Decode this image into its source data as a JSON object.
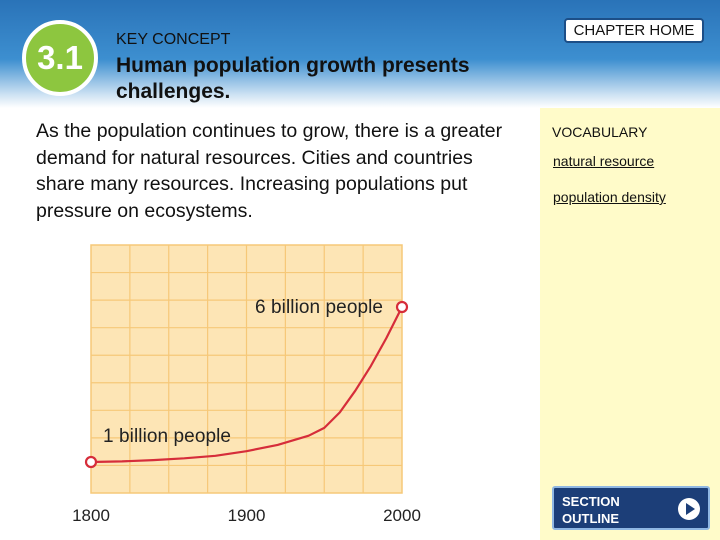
{
  "header": {
    "section_number": "3.1",
    "key_concept_label": "KEY CONCEPT",
    "headline": "Human population growth presents challenges.",
    "chapter_home_label": "CHAPTER HOME"
  },
  "main": {
    "body_text": "As the population continues to grow, there is a greater demand for natural resources. Cities and countries share many resources. Increasing populations put pressure on ecosystems."
  },
  "sidebar": {
    "vocabulary_title": "VOCABULARY",
    "vocab_items": [
      "natural resource",
      "population density"
    ],
    "section_outline_line1": "SECTION",
    "section_outline_line2": "OUTLINE"
  },
  "colors": {
    "header_blue": "#2a73b8",
    "badge_green": "#8dc63f",
    "sidebar_yellow": "#fffbc9",
    "grid_fill": "#fde5b5",
    "grid_line": "#f6c878",
    "curve_red": "#d62d3a"
  },
  "chart_data": {
    "type": "line",
    "title": "",
    "xlabel": "",
    "ylabel": "",
    "x_ticks": [
      "1800",
      "1900",
      "2000"
    ],
    "xlim": [
      1800,
      2000
    ],
    "ylim": [
      0,
      8
    ],
    "grid": true,
    "series": [
      {
        "x": [
          1800,
          1820,
          1840,
          1860,
          1880,
          1900,
          1920,
          1940,
          1950,
          1960,
          1970,
          1980,
          1990,
          2000
        ],
        "y": [
          1.0,
          1.02,
          1.06,
          1.12,
          1.2,
          1.35,
          1.55,
          1.85,
          2.1,
          2.6,
          3.3,
          4.1,
          5.0,
          6.0
        ]
      }
    ],
    "annotations": [
      {
        "text": "1 billion people",
        "x": 1800,
        "y": 1.0
      },
      {
        "text": "6 billion people",
        "x": 2000,
        "y": 6.0
      }
    ]
  }
}
